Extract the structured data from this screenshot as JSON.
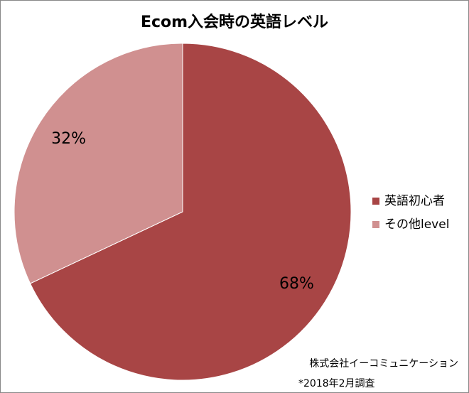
{
  "chart_data": {
    "type": "pie",
    "title": "Ecom入会時の英語レベル",
    "categories": [
      "英語初心者",
      "その他level"
    ],
    "values": [
      68,
      32
    ],
    "value_labels": [
      "68%",
      "32%"
    ],
    "colors": [
      "#a84545",
      "#d09090"
    ],
    "legend": "right",
    "notes": [
      "株式会社イーコミュニケーション",
      "*2018年2月調査"
    ]
  }
}
